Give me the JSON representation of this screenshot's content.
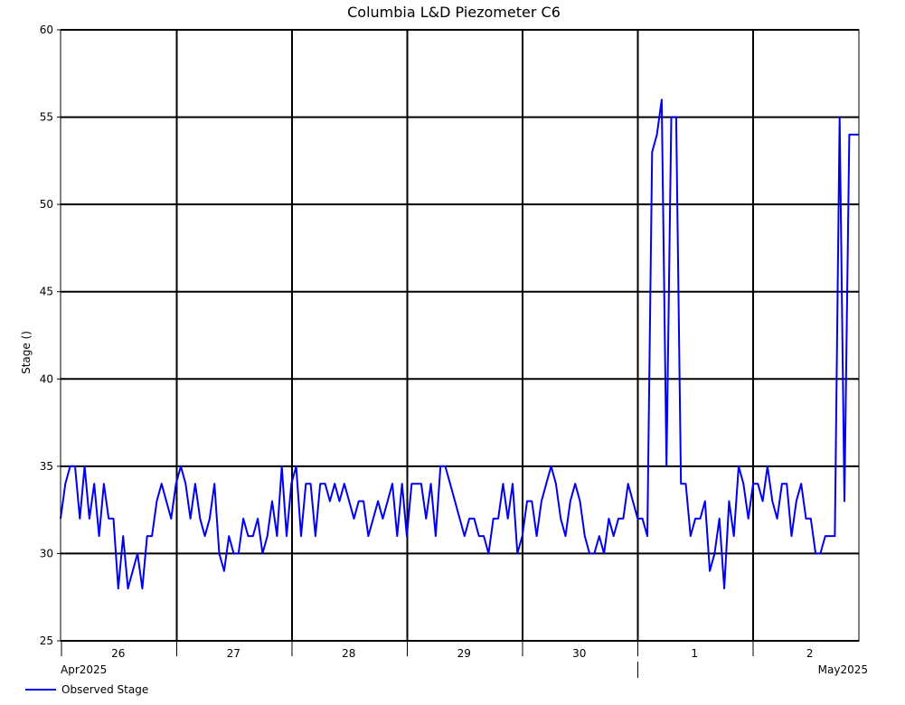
{
  "chart_data": {
    "type": "line",
    "title": "Columbia L&D Piezometer C6",
    "ylabel": "Stage ()",
    "xlabel": "",
    "ylim": [
      25,
      60
    ],
    "yticks": [
      25,
      30,
      35,
      40,
      45,
      50,
      55,
      60
    ],
    "x_day_ticks": [
      "26",
      "27",
      "28",
      "29",
      "30",
      "1",
      "2"
    ],
    "x_month_labels": [
      "Apr2025",
      "May2025"
    ],
    "grid": true,
    "legend_position": "bottom-left",
    "series": [
      {
        "name": "Observed Stage",
        "color": "#0000ee",
        "x_start": "2025-04-25T16:00",
        "step_hours": 1,
        "values": [
          32,
          34,
          35,
          35,
          32,
          35,
          32,
          34,
          31,
          34,
          32,
          32,
          28,
          31,
          28,
          29,
          30,
          28,
          31,
          31,
          33,
          34,
          33,
          32,
          34,
          35,
          34,
          32,
          34,
          32,
          31,
          32,
          34,
          30,
          29,
          31,
          30,
          30,
          32,
          31,
          31,
          32,
          30,
          31,
          33,
          31,
          35,
          31,
          34,
          35,
          31,
          34,
          34,
          31,
          34,
          34,
          33,
          34,
          33,
          34,
          33,
          32,
          33,
          33,
          31,
          32,
          33,
          32,
          33,
          34,
          31,
          34,
          31,
          34,
          34,
          34,
          32,
          34,
          31,
          35,
          35,
          34,
          33,
          32,
          31,
          32,
          32,
          31,
          31,
          30,
          32,
          32,
          34,
          32,
          34,
          30,
          31,
          33,
          33,
          31,
          33,
          34,
          35,
          34,
          32,
          31,
          33,
          34,
          33,
          31,
          30,
          30,
          31,
          30,
          32,
          31,
          32,
          32,
          34,
          33,
          32,
          32,
          31,
          53,
          54,
          56,
          35,
          55,
          55,
          34,
          34,
          31,
          32,
          32,
          33,
          29,
          30,
          32,
          28,
          33,
          31,
          35,
          34,
          32,
          34,
          34,
          33,
          35,
          33,
          32,
          34,
          34,
          31,
          33,
          34,
          32,
          32,
          30,
          30,
          31,
          31,
          31,
          55,
          33,
          54,
          54,
          54
        ]
      }
    ]
  }
}
